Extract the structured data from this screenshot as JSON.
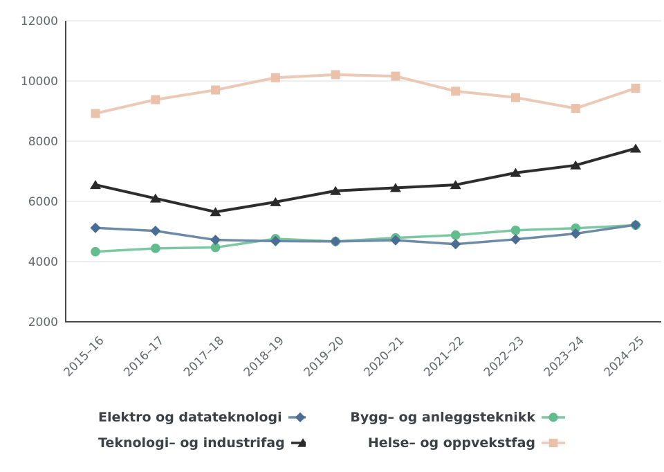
{
  "chart_data": {
    "type": "line",
    "title": "",
    "xlabel": "",
    "ylabel": "",
    "categories": [
      "2015–16",
      "2016–17",
      "2017–18",
      "2018–19",
      "2019–20",
      "2020–21",
      "2021–22",
      "2022–23",
      "2023–24",
      "2024–25"
    ],
    "series": [
      {
        "name": "Elektro og datateknologi",
        "marker": "diamond",
        "marker_color": "#4b6d94",
        "line_color": "#6d8aa6",
        "values": [
          5120,
          5020,
          4720,
          4680,
          4670,
          4710,
          4580,
          4740,
          4930,
          5220
        ]
      },
      {
        "name": "Bygg– og anleggsteknikk",
        "marker": "circle",
        "marker_color": "#62bc8e",
        "line_color": "#7dc7a3",
        "values": [
          4330,
          4440,
          4470,
          4760,
          4670,
          4790,
          4880,
          5040,
          5110,
          5210
        ]
      },
      {
        "name": "Teknologi– og industrifag",
        "marker": "triangle",
        "marker_color": "#2a2a2a",
        "line_color": "#2d2d2d",
        "values": [
          6550,
          6100,
          5650,
          5980,
          6350,
          6450,
          6550,
          6950,
          7200,
          7760
        ]
      },
      {
        "name": "Helse– og oppvekstfag",
        "marker": "square",
        "marker_color": "#eac2ac",
        "line_color": "#ecc9b6",
        "values": [
          8920,
          9380,
          9700,
          10110,
          10210,
          10160,
          9660,
          9450,
          9090,
          9760
        ]
      }
    ],
    "draw_order": [
      3,
      2,
      1,
      0
    ],
    "legend_rows": [
      [
        0,
        1
      ],
      [
        2,
        3
      ]
    ],
    "legend_position": "bottom",
    "ylim": [
      2000,
      12000
    ],
    "yticks": [
      "2000",
      "4000",
      "6000",
      "8000",
      "10000",
      "12000"
    ],
    "grid": true,
    "grid_color": "#e8e8e8",
    "axis_color": "#4a4a4a",
    "tick_label_color": "#64686c"
  }
}
